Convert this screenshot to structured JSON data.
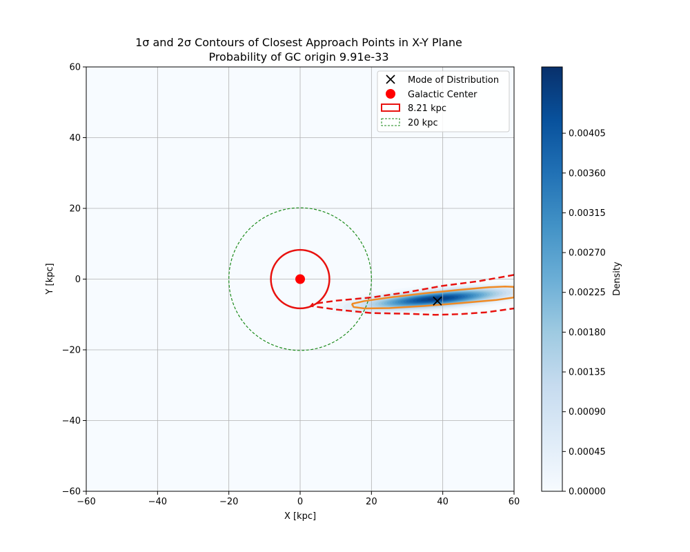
{
  "chart_data": {
    "type": "heatmap",
    "title_line1": "1σ and 2σ Contours of Closest Approach Points in X-Y Plane",
    "title_line2": "Probability of GC origin 9.91e-33",
    "xlabel": "X [kpc]",
    "ylabel": "Y [kpc]",
    "xlim": [
      -60,
      60
    ],
    "ylim": [
      -60,
      60
    ],
    "x_ticks": [
      -60,
      -40,
      -20,
      0,
      20,
      40,
      60
    ],
    "y_ticks": [
      -60,
      -40,
      -20,
      0,
      20,
      40,
      60
    ],
    "x_tick_labels": [
      "−60",
      "−40",
      "−20",
      "0",
      "20",
      "40",
      "60"
    ],
    "y_tick_labels": [
      "−60",
      "−40",
      "−20",
      "0",
      "20",
      "40",
      "60"
    ],
    "grid": true,
    "mode": {
      "x": 38.5,
      "y": -6.2
    },
    "galactic_center": {
      "x": 0,
      "y": 0
    },
    "circles": [
      {
        "name": "8.21 kpc",
        "radius": 8.21,
        "color": "#e8120f",
        "style": "solid"
      },
      {
        "name": "20 kpc",
        "radius": 20,
        "color": "#1a8a1a",
        "style": "dashed"
      }
    ],
    "contour_1sigma": {
      "color": "#f08a24",
      "points": [
        [
          14.5,
          -7.0
        ],
        [
          18,
          -6.2
        ],
        [
          25,
          -5.2
        ],
        [
          35,
          -4.0
        ],
        [
          45,
          -3.0
        ],
        [
          53,
          -2.3
        ],
        [
          57.5,
          -2.1
        ],
        [
          60,
          -2.2
        ],
        [
          60,
          -5.2
        ],
        [
          55,
          -5.9
        ],
        [
          45,
          -6.8
        ],
        [
          35,
          -7.6
        ],
        [
          25,
          -8.2
        ],
        [
          18,
          -8.3
        ],
        [
          15,
          -7.9
        ],
        [
          14.5,
          -7.0
        ]
      ]
    },
    "contour_2sigma": {
      "color": "#e8120f",
      "points": [
        [
          60,
          1.2
        ],
        [
          50,
          -0.6
        ],
        [
          40,
          -1.9
        ],
        [
          30,
          -3.7
        ],
        [
          20,
          -5.2
        ],
        [
          10,
          -6.1
        ],
        [
          3.5,
          -7.0
        ],
        [
          3.0,
          -7.6
        ],
        [
          10,
          -8.6
        ],
        [
          20,
          -9.6
        ],
        [
          30,
          -9.8
        ],
        [
          38,
          -10.1
        ],
        [
          45,
          -9.9
        ],
        [
          52,
          -9.4
        ],
        [
          60,
          -8.3
        ]
      ]
    },
    "density_blob": {
      "center_x": 38,
      "center_y": -5.6,
      "angle_deg": 5.0,
      "sigma_along": 12.0,
      "sigma_perp": 1.4,
      "extent_min_x": 7.0
    },
    "legend": {
      "location": "top-right",
      "entries": [
        {
          "label": "Mode of Distribution",
          "marker": "x",
          "color": "#000000"
        },
        {
          "label": "Galactic Center",
          "marker": "circle",
          "color": "#ff0000"
        },
        {
          "label": "8.21 kpc",
          "marker": "rect-solid",
          "color": "#e8120f"
        },
        {
          "label": "20 kpc",
          "marker": "rect-dashed",
          "color": "#1a8a1a"
        }
      ]
    },
    "colorbar": {
      "label": "Density",
      "min": 0.0,
      "max": 0.0048,
      "ticks": [
        0.0,
        0.00045,
        0.0009,
        0.00135,
        0.0018,
        0.00225,
        0.0027,
        0.00315,
        0.0036,
        0.00405
      ],
      "tick_labels": [
        "0.00000",
        "0.00045",
        "0.00090",
        "0.00135",
        "0.00180",
        "0.00225",
        "0.00270",
        "0.00315",
        "0.00360",
        "0.00405"
      ],
      "colormap": "Blues",
      "colormap_stops": [
        "#f7fbff",
        "#deebf7",
        "#c6dbef",
        "#9ecae1",
        "#6baed6",
        "#4292c6",
        "#2171b5",
        "#08519c",
        "#08306b"
      ]
    },
    "colors": {
      "background": "#f7fbff",
      "grid": "#b0b0b0",
      "galactic_center": "#ff0000",
      "mode_marker": "#000000"
    }
  }
}
